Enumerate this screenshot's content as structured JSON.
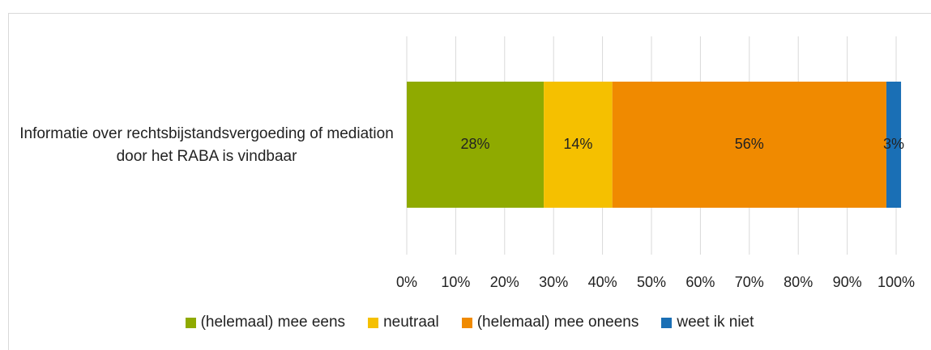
{
  "chart_data": {
    "type": "stacked-bar-horizontal",
    "categories": [
      "Informatie over rechtsbijstandsvergoeding of mediation door het RABA is vindbaar"
    ],
    "series": [
      {
        "name": "(helemaal) mee eens",
        "color": "#8faa00",
        "values": [
          28
        ],
        "value_labels": [
          "28%"
        ]
      },
      {
        "name": "neutraal",
        "color": "#f5c000",
        "values": [
          14
        ],
        "value_labels": [
          "14%"
        ]
      },
      {
        "name": "(helemaal) mee oneens",
        "color": "#f08a00",
        "values": [
          56
        ],
        "value_labels": [
          "56%"
        ]
      },
      {
        "name": "weet ik niet",
        "color": "#1a6fb5",
        "values": [
          3
        ],
        "value_labels": [
          "3%"
        ]
      }
    ],
    "xlim": [
      0,
      100
    ],
    "xticks": [
      {
        "value": 0,
        "label": "0%"
      },
      {
        "value": 10,
        "label": "10%"
      },
      {
        "value": 20,
        "label": "20%"
      },
      {
        "value": 30,
        "label": "30%"
      },
      {
        "value": 40,
        "label": "40%"
      },
      {
        "value": 50,
        "label": "50%"
      },
      {
        "value": 60,
        "label": "60%"
      },
      {
        "value": 70,
        "label": "70%"
      },
      {
        "value": 80,
        "label": "80%"
      },
      {
        "value": 90,
        "label": "90%"
      },
      {
        "value": 100,
        "label": "100%"
      }
    ],
    "grid": true,
    "legend": "bottom"
  }
}
